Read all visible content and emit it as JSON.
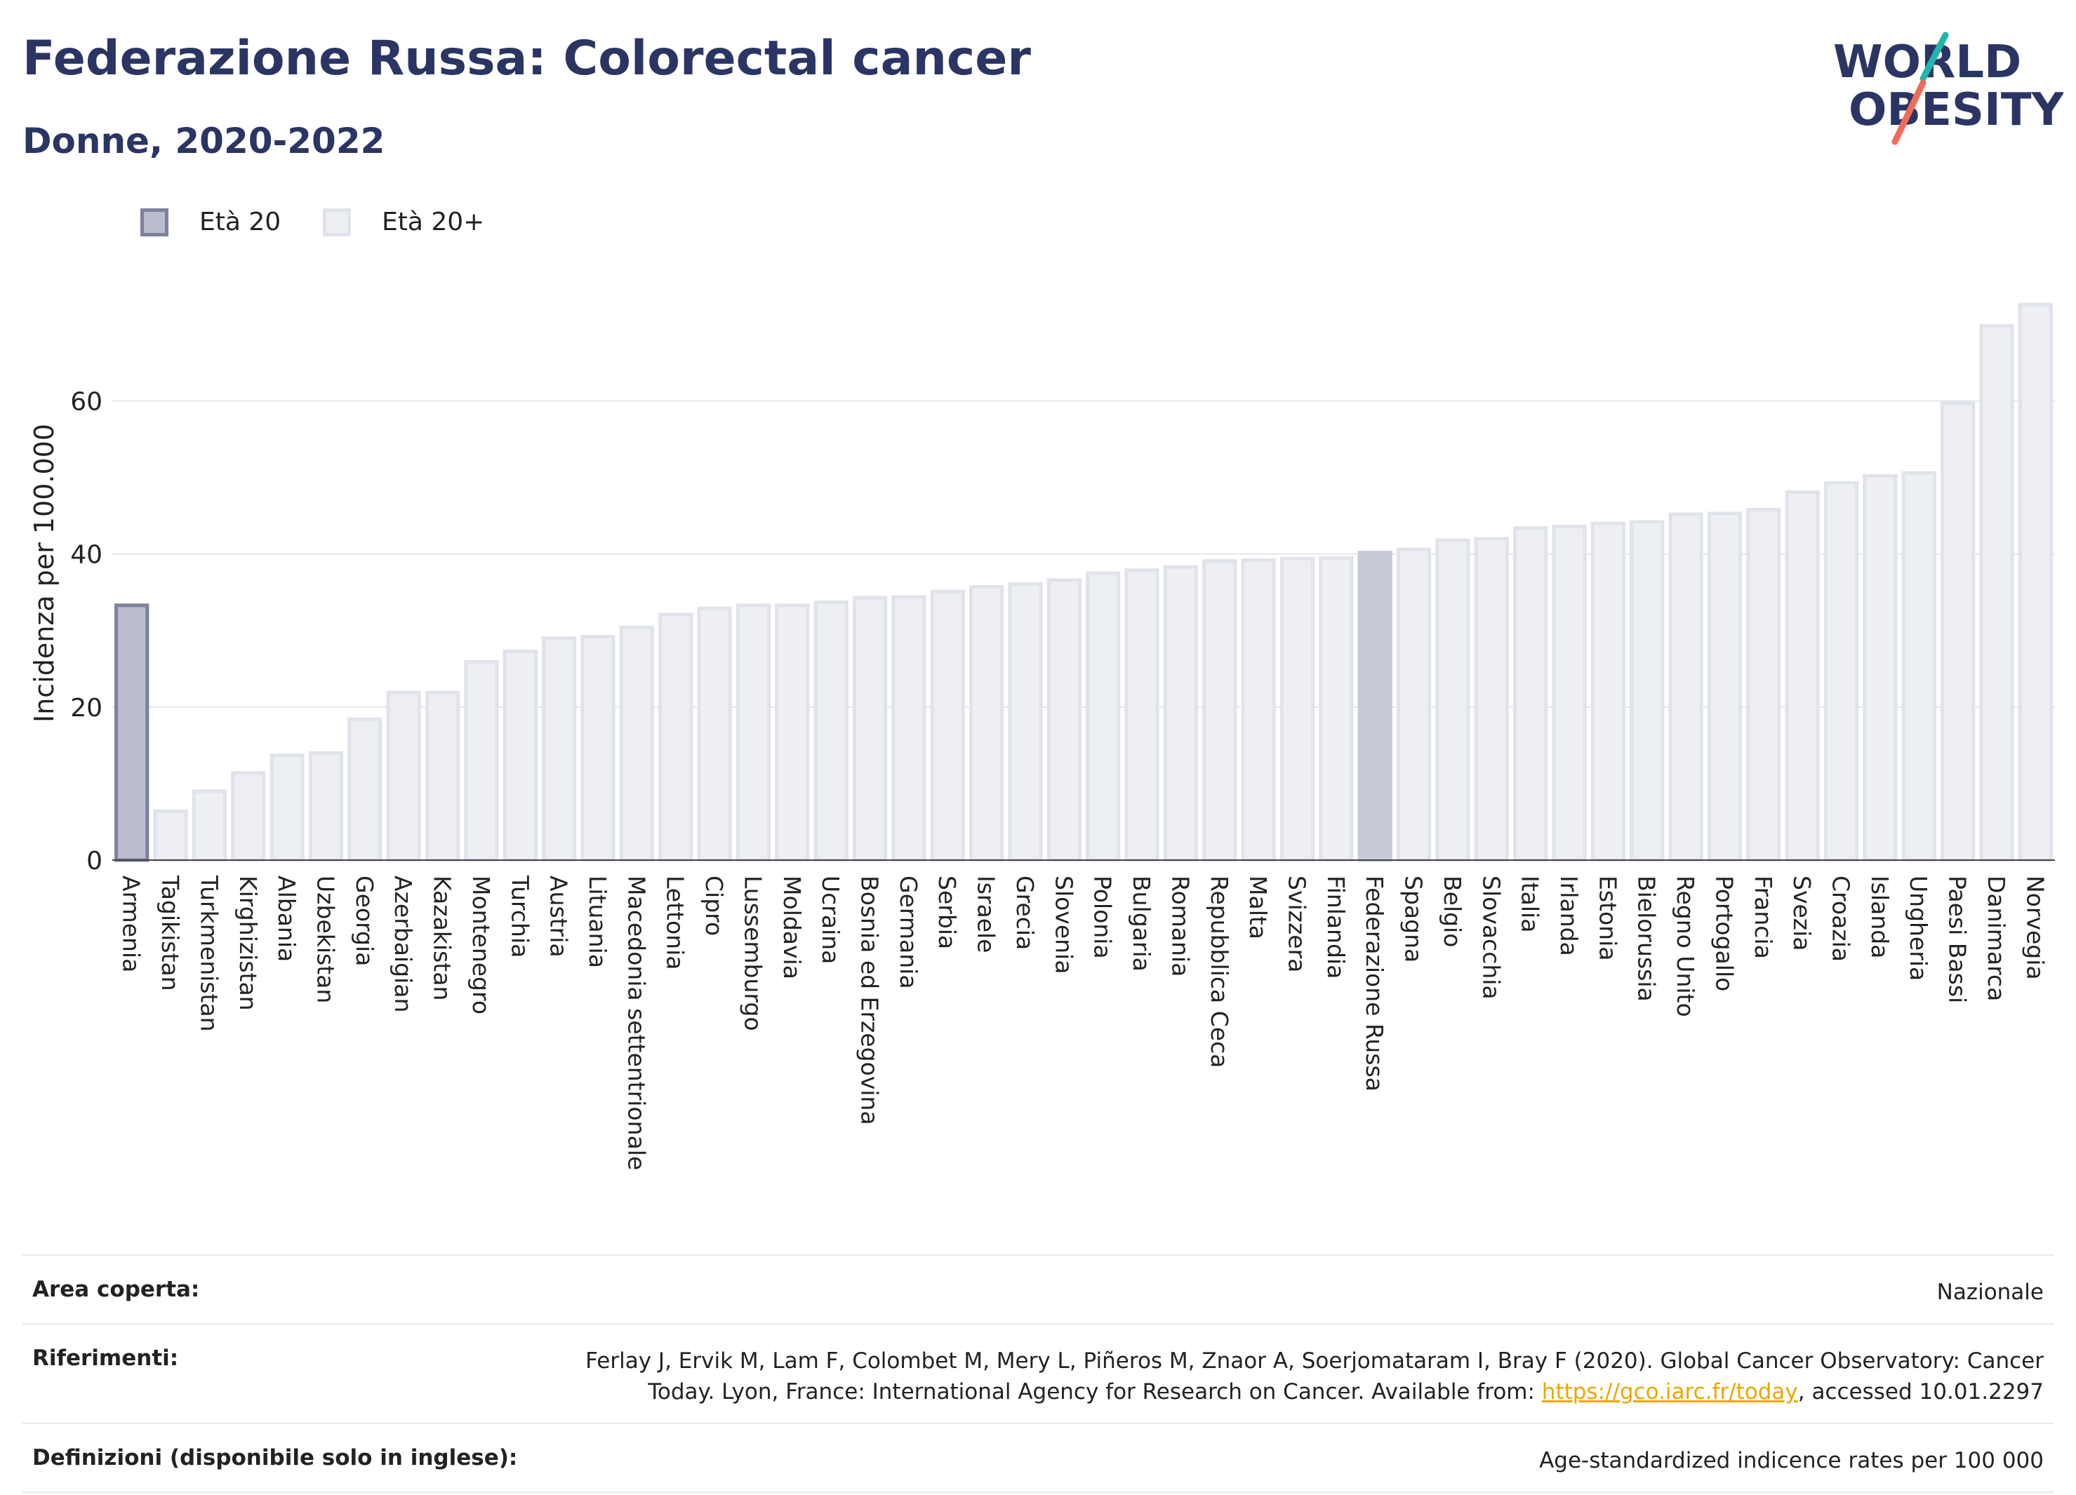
{
  "header": {
    "title": "Federazione Russa: Colorectal cancer",
    "subtitle": "Donne, 2020-2022"
  },
  "logo": {
    "line1": "WORLD",
    "line2": "OBESITY"
  },
  "legend": [
    {
      "label": "Età 20",
      "color": "#b9bccd",
      "border": "#7d819e"
    },
    {
      "label": "Età 20+",
      "color": "#eeeff4",
      "border": "#e1e3ea"
    }
  ],
  "chart_data": {
    "type": "bar",
    "ylabel": "Incidenza per 100.000",
    "ylim": [
      0,
      75
    ],
    "yticks": [
      0,
      20,
      40,
      60
    ],
    "grid": true,
    "categories": [
      "Armenia",
      "Tagikistan",
      "Turkmenistan",
      "Kirghizistan",
      "Albania",
      "Uzbekistan",
      "Georgia",
      "Azerbaigian",
      "Kazakistan",
      "Montenegro",
      "Turchia",
      "Austria",
      "Lituania",
      "Macedonia settentrionale",
      "Lettonia",
      "Cipro",
      "Lussemburgo",
      "Moldavia",
      "Ucraina",
      "Bosnia ed Erzegovina",
      "Germania",
      "Serbia",
      "Israele",
      "Grecia",
      "Slovenia",
      "Polonia",
      "Bulgaria",
      "Romania",
      "Repubblica Ceca",
      "Malta",
      "Svizzera",
      "Finlandia",
      "Federazione Russa",
      "Spagna",
      "Belgio",
      "Slovacchia",
      "Italia",
      "Irlanda",
      "Estonia",
      "Bielorussia",
      "Regno Unito",
      "Portogallo",
      "Francia",
      "Svezia",
      "Croazia",
      "Islanda",
      "Ungheria",
      "Paesi Bassi",
      "Danimarca",
      "Norvegia"
    ],
    "values": [
      33.3,
      6.4,
      9.0,
      11.4,
      13.7,
      14.0,
      18.4,
      21.9,
      21.9,
      25.9,
      27.3,
      29.0,
      29.2,
      30.4,
      32.1,
      32.9,
      33.3,
      33.3,
      33.7,
      34.3,
      34.4,
      35.1,
      35.7,
      36.1,
      36.6,
      37.5,
      37.9,
      38.3,
      39.1,
      39.2,
      39.4,
      39.5,
      40.2,
      40.6,
      41.8,
      42.0,
      43.4,
      43.6,
      44.0,
      44.2,
      45.2,
      45.3,
      45.8,
      48.1,
      49.3,
      50.2,
      50.6,
      59.7,
      69.8,
      72.6
    ],
    "highlight": {
      "category": "Federazione Russa",
      "color": "#c8cad8"
    },
    "series": [
      {
        "name": "Età 20",
        "categories": [
          "Armenia"
        ]
      },
      {
        "name": "Età 20+"
      }
    ]
  },
  "footer": {
    "rows": [
      {
        "label": "Area coperta:",
        "value": "Nazionale"
      },
      {
        "label": "Riferimenti:",
        "value_before": "Ferlay J, Ervik M, Lam F, Colombet M, Mery L, Piñeros M, Znaor A, Soerjomataram I, Bray F (2020). Global Cancer Observatory: Cancer Today. Lyon, France: International Agency for Research on Cancer. Available from: ",
        "link": "https://gco.iarc.fr/today",
        "value_after": ", accessed 10.01.2297"
      },
      {
        "label": "Definizioni (disponibile solo in inglese):",
        "value": "Age-standardized indicence rates per 100 000"
      }
    ]
  }
}
